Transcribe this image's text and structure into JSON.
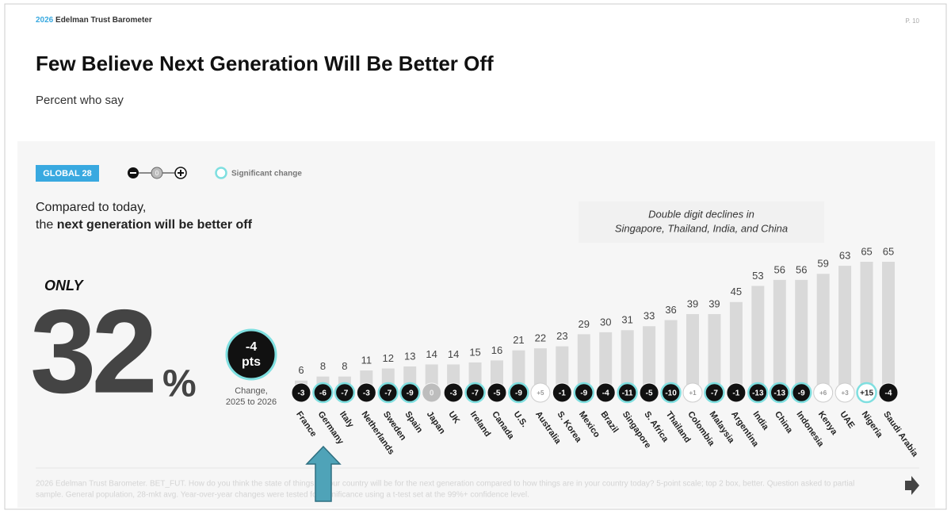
{
  "header": {
    "brand_year": "2026",
    "brand": "Edelman Trust Barometer",
    "page": "P. 10"
  },
  "title": "Few Believe Next Generation Will Be Better Off",
  "subtitle": "Percent who say",
  "legend": {
    "badge": "GLOBAL 28",
    "significant": "Significant change"
  },
  "intro": {
    "line1": "Compared to today,",
    "line2_prefix": "the",
    "line2_bold": "next generation will be better off"
  },
  "headline": {
    "only": "ONLY",
    "value": "32",
    "unit": "%",
    "change": "-4",
    "change_unit": "pts",
    "change_caption_1": "Change,",
    "change_caption_2": "2025 to 2026"
  },
  "chart_data": {
    "type": "bar",
    "annotation": [
      "Double digit declines in",
      "Singapore, Thailand, India, and China"
    ],
    "categories": [
      "France",
      "Germany",
      "Italy",
      "Netherlands",
      "Sweden",
      "Spain",
      "Japan",
      "UK",
      "Ireland",
      "Canada",
      "U.S.",
      "Australia",
      "S. Korea",
      "Mexico",
      "Brazil",
      "Singapore",
      "S. Africa",
      "Thailand",
      "Colombia",
      "Malaysia",
      "Argentina",
      "India",
      "China",
      "Indonesia",
      "Kenya",
      "UAE",
      "Nigeria",
      "Saudi Arabia"
    ],
    "values": [
      6,
      8,
      8,
      11,
      12,
      13,
      14,
      14,
      15,
      16,
      21,
      22,
      23,
      29,
      30,
      31,
      33,
      36,
      39,
      39,
      45,
      53,
      56,
      56,
      59,
      63,
      65,
      65
    ],
    "color": "#d9d9d9",
    "changes": [
      -3,
      -6,
      -7,
      -3,
      -7,
      -9,
      0,
      -3,
      -7,
      -5,
      -9,
      5,
      -1,
      -9,
      -4,
      -11,
      -5,
      -10,
      1,
      -7,
      -1,
      -13,
      -13,
      -9,
      6,
      3,
      15,
      -4
    ],
    "change_labels": [
      "-3",
      "-6",
      "-7",
      "-3",
      "-7",
      "-9",
      "0",
      "-3",
      "-7",
      "-5",
      "-9",
      "+5",
      "-1",
      "-9",
      "-4",
      "-11",
      "-5",
      "-10",
      "+1",
      "-7",
      "-1",
      "-13",
      "-13",
      "-9",
      "+6",
      "+3",
      "+15",
      "-4"
    ],
    "significant": [
      false,
      true,
      true,
      false,
      true,
      true,
      false,
      false,
      true,
      false,
      true,
      false,
      false,
      true,
      false,
      true,
      false,
      true,
      false,
      true,
      false,
      true,
      true,
      true,
      false,
      false,
      true,
      false
    ],
    "significant_color": "#7fdfe0"
  },
  "footnote": [
    "2026 Edelman Trust Barometer. BET_FUT. How do you think the state of things in your country will be for the next generation compared to how things are in your country today? 5-point scale; top 2 box, better. Question asked to partial",
    "sample. General population, 28-mkt avg. Year-over-year changes were tested for significance using a t-test set at the 99%+ confidence level."
  ]
}
